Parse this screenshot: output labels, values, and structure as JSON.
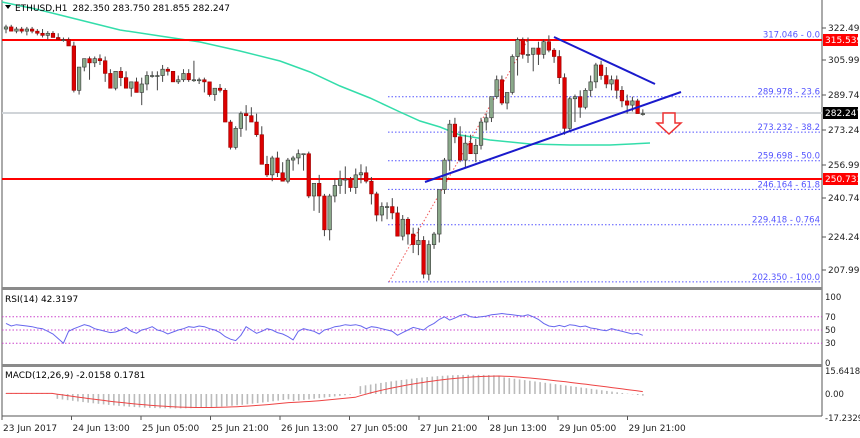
{
  "header": {
    "symbol": "ETHUSD,H1",
    "ohlc": "282.350 283.750 281.855 282.247"
  },
  "colors": {
    "bull": "#8aa98a",
    "bear": "#dd0000",
    "outline": "#333333",
    "support_resistance": "#ff0000",
    "trendline": "#1a1acc",
    "fib": "#5555ff",
    "ma": "#33ddaa",
    "rsi": "#6666ee",
    "rsi_levels": "#cc44cc",
    "macd_hist": "#bbbbbb",
    "macd_signal": "#ee4444",
    "current_price": "#d0d4d8",
    "arrow": "#ee3333"
  },
  "price_axis": {
    "ticks": [
      "322.490",
      "305.990",
      "289.740",
      "273.240",
      "256.990",
      "240.740",
      "224.240",
      "207.990"
    ],
    "labels_tagged": [
      {
        "value": "315.539",
        "bg": "#ff0000",
        "fg": "#ffffff"
      },
      {
        "value": "282.247",
        "bg": "#000000",
        "fg": "#ffffff"
      },
      {
        "value": "250.733",
        "bg": "#ff0000",
        "fg": "#ffffff"
      }
    ]
  },
  "fib_levels": [
    {
      "price": 317.046,
      "label": "317.046 - 0.0"
    },
    {
      "price": 289.978,
      "label": "289.978 - 23.6"
    },
    {
      "price": 273.232,
      "label": "273.232 - 38.2"
    },
    {
      "price": 259.698,
      "label": "259.698 - 50.0"
    },
    {
      "price": 246.164,
      "label": "246.164 - 61.8"
    },
    {
      "price": 229.418,
      "label": "229.418 - 0.764"
    },
    {
      "price": 202.35,
      "label": "202.350 - 100.0"
    }
  ],
  "rsi": {
    "title": "RSI(14) 42.3197",
    "ticks": [
      "100",
      "70",
      "50",
      "30",
      "0"
    ]
  },
  "macd": {
    "title": "MACD(12,26,9) -2.0158 0.1781",
    "ticks": [
      "15.6418",
      "0.00",
      "-17.2329"
    ]
  },
  "time_axis": [
    "23 Jun 2017",
    "24 Jun 13:00",
    "25 Jun 05:00",
    "25 Jun 21:00",
    "26 Jun 13:00",
    "27 Jun 05:00",
    "27 Jun 21:00",
    "28 Jun 13:00",
    "29 Jun 05:00",
    "29 Jun 21:00"
  ],
  "chart_data": {
    "type": "candlestick",
    "title": "ETHUSD,H1 282.350 283.750 281.855 282.247",
    "xlabel": "",
    "ylabel": "",
    "ylim": [
      202,
      326
    ],
    "x_ticks": [
      "23 Jun 2017",
      "24 Jun 13:00",
      "25 Jun 05:00",
      "25 Jun 21:00",
      "26 Jun 13:00",
      "27 Jun 05:00",
      "27 Jun 21:00",
      "28 Jun 13:00",
      "29 Jun 05:00",
      "29 Jun 21:00"
    ],
    "horizontal_lines": [
      {
        "name": "resistance",
        "value": 315.539
      },
      {
        "name": "support",
        "value": 250.733
      },
      {
        "name": "current_price",
        "value": 282.247
      }
    ],
    "fibonacci": [
      {
        "level": "0.0",
        "value": 317.046
      },
      {
        "level": "23.6",
        "value": 289.978
      },
      {
        "level": "38.2",
        "value": 273.232
      },
      {
        "level": "50.0",
        "value": 259.698
      },
      {
        "level": "61.8",
        "value": 246.164
      },
      {
        "level": "0.764",
        "value": 229.418
      },
      {
        "level": "100.0",
        "value": 202.35
      }
    ],
    "trendlines": [
      {
        "name": "rising support",
        "from": [
          425,
          248.5
        ],
        "to": [
          680,
          285.5
        ]
      },
      {
        "name": "falling resistance",
        "from": [
          555,
          317.5
        ],
        "to": [
          655,
          292.5
        ]
      }
    ],
    "candles_ohlc": [
      [
        322,
        324,
        320,
        323
      ],
      [
        323,
        324,
        321,
        321
      ],
      [
        321,
        323,
        320,
        322
      ],
      [
        322,
        323,
        320,
        321
      ],
      [
        321,
        323,
        319,
        322
      ],
      [
        322,
        323,
        320,
        321
      ],
      [
        321,
        322,
        319,
        320
      ],
      [
        320,
        322,
        318,
        319
      ],
      [
        319,
        321,
        317,
        320
      ],
      [
        320,
        321,
        318,
        318
      ],
      [
        318,
        320,
        317,
        317
      ],
      [
        317,
        318,
        316,
        317
      ],
      [
        317,
        318,
        314,
        314
      ],
      [
        314,
        316,
        292,
        293
      ],
      [
        293,
        304,
        291,
        304
      ],
      [
        304,
        308,
        302,
        308
      ],
      [
        308,
        309,
        298,
        306
      ],
      [
        306,
        309,
        304,
        308
      ],
      [
        308,
        310,
        305,
        307
      ],
      [
        307,
        309,
        297,
        301
      ],
      [
        301,
        303,
        294,
        294
      ],
      [
        294,
        302,
        293,
        302
      ],
      [
        302,
        304,
        295,
        299
      ],
      [
        299,
        302,
        294,
        294
      ],
      [
        294,
        297,
        290,
        297
      ],
      [
        297,
        299,
        292,
        292
      ],
      [
        292,
        299,
        286,
        296
      ],
      [
        296,
        302,
        293,
        300
      ],
      [
        300,
        302,
        299,
        300
      ],
      [
        300,
        302,
        293,
        300
      ],
      [
        300,
        305,
        297,
        303
      ],
      [
        303,
        304,
        300,
        302
      ],
      [
        302,
        302,
        297,
        297
      ],
      [
        297,
        300,
        296,
        298
      ],
      [
        298,
        303,
        297,
        301
      ],
      [
        301,
        303,
        297,
        298
      ],
      [
        298,
        307,
        297,
        298
      ],
      [
        298,
        299,
        296,
        298
      ],
      [
        298,
        299,
        292,
        297
      ],
      [
        297,
        297,
        290,
        291
      ],
      [
        291,
        294,
        288,
        294
      ],
      [
        294,
        296,
        292,
        293
      ],
      [
        293,
        294,
        278,
        278
      ],
      [
        278,
        279,
        265,
        266
      ],
      [
        266,
        276,
        265,
        275
      ],
      [
        275,
        283,
        271,
        282
      ],
      [
        282,
        286,
        274,
        281
      ],
      [
        281,
        285,
        278,
        278
      ],
      [
        278,
        282,
        271,
        272
      ],
      [
        272,
        276,
        258,
        258
      ],
      [
        258,
        262,
        252,
        253
      ],
      [
        253,
        262,
        250,
        261
      ],
      [
        261,
        264,
        252,
        254
      ],
      [
        254,
        259,
        250,
        250
      ],
      [
        250,
        261,
        249,
        260
      ],
      [
        260,
        262,
        255,
        261
      ],
      [
        261,
        265,
        258,
        263
      ],
      [
        263,
        263,
        255,
        263
      ],
      [
        263,
        264,
        242,
        243
      ],
      [
        243,
        249,
        236,
        249
      ],
      [
        249,
        253,
        235,
        243
      ],
      [
        243,
        244,
        224,
        227
      ],
      [
        227,
        244,
        222,
        243
      ],
      [
        243,
        251,
        240,
        248
      ],
      [
        248,
        255,
        244,
        251
      ],
      [
        251,
        257,
        244,
        251
      ],
      [
        251,
        252,
        245,
        247
      ],
      [
        247,
        256,
        244,
        253
      ],
      [
        253,
        258,
        249,
        254
      ],
      [
        254,
        257,
        249,
        250
      ],
      [
        250,
        252,
        239,
        244
      ],
      [
        244,
        245,
        231,
        234
      ],
      [
        234,
        240,
        231,
        238
      ],
      [
        238,
        240,
        232,
        238
      ],
      [
        238,
        242,
        232,
        235
      ],
      [
        235,
        238,
        224,
        224
      ],
      [
        224,
        234,
        222,
        232
      ],
      [
        232,
        233,
        220,
        225
      ],
      [
        225,
        228,
        216,
        220
      ],
      [
        220,
        228,
        215,
        222
      ],
      [
        222,
        224,
        204,
        206
      ],
      [
        206,
        222,
        203,
        220
      ],
      [
        220,
        226,
        218,
        225
      ],
      [
        225,
        246,
        221,
        246
      ],
      [
        246,
        261,
        244,
        260
      ],
      [
        260,
        279,
        255,
        277
      ],
      [
        277,
        280,
        268,
        271
      ],
      [
        271,
        276,
        259,
        260
      ],
      [
        260,
        272,
        256,
        268
      ],
      [
        268,
        272,
        263,
        263
      ],
      [
        263,
        270,
        259,
        267
      ],
      [
        267,
        280,
        265,
        278
      ],
      [
        278,
        282,
        274,
        280
      ],
      [
        280,
        290,
        278,
        290
      ],
      [
        290,
        300,
        289,
        298
      ],
      [
        298,
        300,
        286,
        287
      ],
      [
        287,
        292,
        284,
        292
      ],
      [
        292,
        310,
        291,
        309
      ],
      [
        309,
        318,
        300,
        317
      ],
      [
        317,
        318,
        308,
        310
      ],
      [
        310,
        318,
        306,
        310
      ],
      [
        310,
        313,
        302,
        313
      ],
      [
        313,
        316,
        305,
        310
      ],
      [
        310,
        317,
        308,
        316
      ],
      [
        316,
        319,
        311,
        312
      ],
      [
        312,
        313,
        306,
        309
      ],
      [
        309,
        312,
        296,
        299
      ],
      [
        299,
        301,
        272,
        275
      ],
      [
        275,
        290,
        274,
        289
      ],
      [
        289,
        291,
        278,
        290
      ],
      [
        290,
        293,
        280,
        285
      ],
      [
        285,
        294,
        284,
        293
      ],
      [
        293,
        300,
        290,
        297
      ],
      [
        297,
        306,
        294,
        305
      ],
      [
        305,
        307,
        298,
        300
      ],
      [
        300,
        304,
        294,
        296
      ],
      [
        296,
        300,
        293,
        298
      ],
      [
        298,
        300,
        289,
        293
      ],
      [
        293,
        295,
        285,
        288
      ],
      [
        288,
        291,
        282,
        286
      ],
      [
        286,
        290,
        283,
        288
      ],
      [
        288,
        289,
        282,
        282
      ],
      [
        282,
        284,
        281,
        282
      ]
    ],
    "series": [
      {
        "name": "MA(100)",
        "values_approx": [
          328,
          326,
          322,
          318,
          314,
          310,
          305,
          300,
          295,
          290,
          284,
          278,
          272,
          268,
          266,
          266,
          267,
          267
        ]
      },
      {
        "name": "RSI(14)",
        "last": 42.3197
      },
      {
        "name": "MACD main",
        "last": -2.0158
      },
      {
        "name": "MACD signal",
        "last": 0.1781
      }
    ]
  }
}
